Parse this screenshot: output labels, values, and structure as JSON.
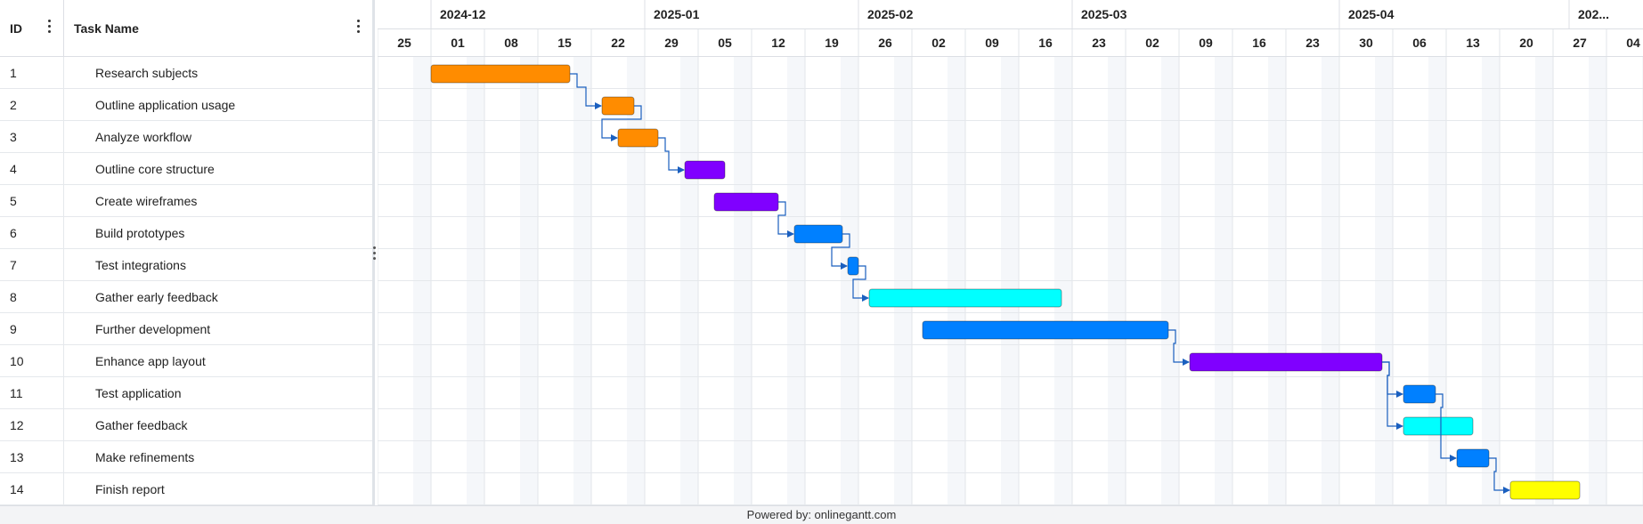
{
  "grid": {
    "id_header": "ID",
    "name_header": "Task Name"
  },
  "months": [
    {
      "label": "2024-12",
      "start_week": 1,
      "end_week": 5
    },
    {
      "label": "2025-01",
      "start_week": 5,
      "end_week": 9
    },
    {
      "label": "2025-02",
      "start_week": 9,
      "end_week": 13
    },
    {
      "label": "2025-03",
      "start_week": 13,
      "end_week": 18
    },
    {
      "label": "2025-04",
      "start_week": 18,
      "end_week": 22.3
    },
    {
      "label": "202...",
      "start_week": 22.3,
      "end_week": 23
    }
  ],
  "weeks": [
    "25",
    "01",
    "08",
    "15",
    "22",
    "29",
    "05",
    "12",
    "19",
    "26",
    "02",
    "09",
    "16",
    "23",
    "02",
    "09",
    "16",
    "23",
    "30",
    "06",
    "13",
    "20",
    "27",
    "04"
  ],
  "chart_data": {
    "type": "gantt",
    "x_unit": "week columns starting 2024-11-25",
    "tasks": [
      {
        "id": "1",
        "name": "Research subjects",
        "start": 1.0,
        "end": 3.6,
        "color": "#ff8c00",
        "predecessor": null
      },
      {
        "id": "2",
        "name": "Outline application usage",
        "start": 4.2,
        "end": 4.8,
        "color": "#ff8c00",
        "predecessor": "1"
      },
      {
        "id": "3",
        "name": "Analyze workflow",
        "start": 4.5,
        "end": 5.25,
        "color": "#ff8c00",
        "predecessor": "2"
      },
      {
        "id": "4",
        "name": "Outline core structure",
        "start": 5.75,
        "end": 6.5,
        "color": "#8000ff",
        "predecessor": "3"
      },
      {
        "id": "5",
        "name": "Create wireframes",
        "start": 6.3,
        "end": 7.5,
        "color": "#8000ff",
        "predecessor": null
      },
      {
        "id": "6",
        "name": "Build prototypes",
        "start": 7.8,
        "end": 8.7,
        "color": "#0080ff",
        "predecessor": "5"
      },
      {
        "id": "7",
        "name": "Test integrations",
        "start": 8.8,
        "end": 9.0,
        "color": "#0080ff",
        "predecessor": "6"
      },
      {
        "id": "8",
        "name": "Gather early feedback",
        "start": 9.2,
        "end": 12.8,
        "color": "#00ffff",
        "predecessor": "7"
      },
      {
        "id": "9",
        "name": "Further development",
        "start": 10.2,
        "end": 14.8,
        "color": "#0080ff",
        "predecessor": null
      },
      {
        "id": "10",
        "name": "Enhance app layout",
        "start": 15.2,
        "end": 18.8,
        "color": "#8000ff",
        "predecessor": "9"
      },
      {
        "id": "11",
        "name": "Test application",
        "start": 19.2,
        "end": 19.8,
        "color": "#0080ff",
        "predecessor": "10"
      },
      {
        "id": "12",
        "name": "Gather feedback",
        "start": 19.2,
        "end": 20.5,
        "color": "#00ffff",
        "predecessor": "10"
      },
      {
        "id": "13",
        "name": "Make refinements",
        "start": 20.2,
        "end": 20.8,
        "color": "#0080ff",
        "predecessor": "11"
      },
      {
        "id": "14",
        "name": "Finish report",
        "start": 21.2,
        "end": 22.5,
        "color": "#ffff00",
        "predecessor": "13"
      }
    ]
  },
  "footer": {
    "text": "Powered by: onlinegantt.com"
  }
}
